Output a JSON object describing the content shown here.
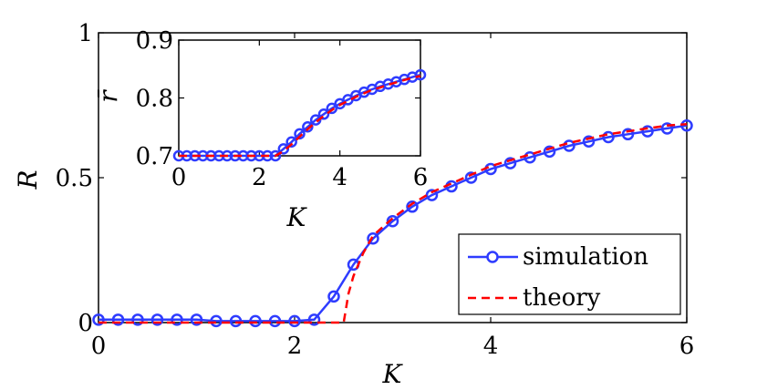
{
  "chart_data": [
    {
      "type": "line",
      "xlabel": "K",
      "ylabel": "R",
      "xlim": [
        0,
        6
      ],
      "ylim": [
        0,
        1
      ],
      "xticks": [
        "0",
        "2",
        "4",
        "6"
      ],
      "yticks": [
        "0",
        "0.5",
        "1"
      ],
      "legend_position": "bottom-right",
      "series": [
        {
          "name": "simulation",
          "color": "#2e3cff",
          "style": "solid-circle-markers",
          "x": [
            0,
            0.2,
            0.4,
            0.6,
            0.8,
            1.0,
            1.2,
            1.4,
            1.6,
            1.8,
            2.0,
            2.2,
            2.4,
            2.6,
            2.8,
            3.0,
            3.2,
            3.4,
            3.6,
            3.8,
            4.0,
            4.2,
            4.4,
            4.6,
            4.8,
            5.0,
            5.2,
            5.4,
            5.6,
            5.8,
            6.0
          ],
          "y": [
            0.01,
            0.01,
            0.01,
            0.01,
            0.01,
            0.01,
            0.005,
            0.005,
            0.005,
            0.005,
            0.005,
            0.01,
            0.09,
            0.2,
            0.29,
            0.35,
            0.4,
            0.44,
            0.47,
            0.5,
            0.53,
            0.55,
            0.57,
            0.59,
            0.61,
            0.625,
            0.64,
            0.65,
            0.66,
            0.67,
            0.68
          ]
        },
        {
          "name": "theory",
          "color": "#ff0000",
          "style": "dashed",
          "x": [
            0,
            2.3,
            2.5,
            2.55,
            2.6,
            2.7,
            2.8,
            3.0,
            3.2,
            3.4,
            3.6,
            3.8,
            4.0,
            4.2,
            4.4,
            4.6,
            4.8,
            5.0,
            5.2,
            5.4,
            5.6,
            5.8,
            6.0
          ],
          "y": [
            0,
            0,
            0,
            0.1,
            0.16,
            0.24,
            0.3,
            0.36,
            0.41,
            0.45,
            0.48,
            0.51,
            0.54,
            0.56,
            0.58,
            0.6,
            0.62,
            0.635,
            0.65,
            0.66,
            0.67,
            0.68,
            0.685
          ]
        }
      ]
    },
    {
      "type": "line",
      "inset": true,
      "xlabel": "K",
      "ylabel": "r̄",
      "xlim": [
        0,
        6
      ],
      "ylim": [
        0.7,
        0.9
      ],
      "xticks": [
        "0",
        "2",
        "4",
        "6"
      ],
      "yticks": [
        "0.7",
        "0.8",
        "0.9"
      ],
      "series": [
        {
          "name": "simulation",
          "color": "#2e3cff",
          "style": "solid-circle-markers",
          "x": [
            0,
            0.2,
            0.4,
            0.6,
            0.8,
            1.0,
            1.2,
            1.4,
            1.6,
            1.8,
            2.0,
            2.2,
            2.4,
            2.6,
            2.8,
            3.0,
            3.2,
            3.4,
            3.6,
            3.8,
            4.0,
            4.2,
            4.4,
            4.6,
            4.8,
            5.0,
            5.2,
            5.4,
            5.6,
            5.8,
            6.0
          ],
          "y": [
            0.7,
            0.7,
            0.7,
            0.7,
            0.7,
            0.7,
            0.7,
            0.7,
            0.7,
            0.7,
            0.7,
            0.7,
            0.7,
            0.712,
            0.724,
            0.738,
            0.75,
            0.762,
            0.772,
            0.782,
            0.79,
            0.797,
            0.804,
            0.81,
            0.815,
            0.82,
            0.824,
            0.828,
            0.832,
            0.836,
            0.84
          ]
        },
        {
          "name": "theory",
          "color": "#ff0000",
          "style": "dashed",
          "x": [
            0,
            2.4,
            2.6,
            2.8,
            3.0,
            3.2,
            3.4,
            3.6,
            3.8,
            4.0,
            4.2,
            4.4,
            4.6,
            4.8,
            5.0,
            5.2,
            5.4,
            5.6,
            5.8,
            6.0
          ],
          "y": [
            0.7,
            0.7,
            0.708,
            0.72,
            0.733,
            0.746,
            0.758,
            0.769,
            0.779,
            0.788,
            0.795,
            0.802,
            0.808,
            0.814,
            0.818,
            0.823,
            0.827,
            0.831,
            0.835,
            0.838
          ]
        }
      ]
    }
  ],
  "legend": {
    "simulation_label": "simulation",
    "theory_label": "theory"
  }
}
